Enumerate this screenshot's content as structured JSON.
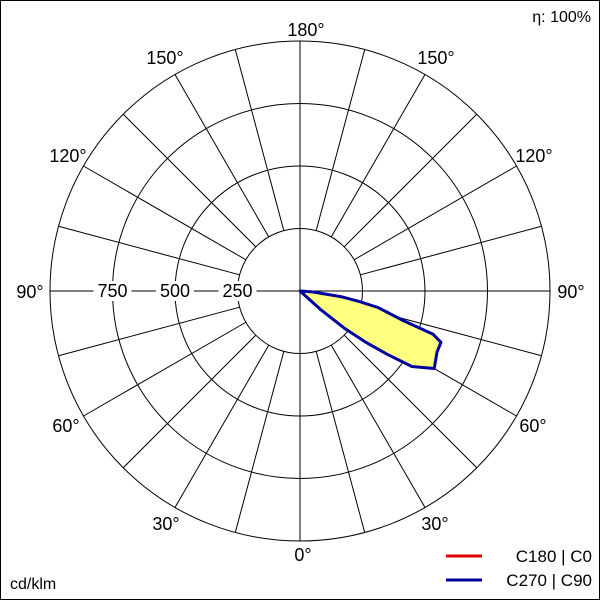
{
  "efficiency": "η: 100%",
  "unit": "cd/klm",
  "chart_data": {
    "type": "polar",
    "angle_labels": {
      "bottom": "0°",
      "top": "180°",
      "left_30": "30°",
      "right_30": "30°",
      "left_60": "60°",
      "right_60": "60°",
      "left_90": "90°",
      "right_90": "90°",
      "left_120": "120°",
      "right_120": "120°",
      "left_150": "150°",
      "right_150": "150°"
    },
    "radial_ticks": [
      250,
      500,
      750
    ],
    "radial_tick_labels": [
      "250",
      "500",
      "750"
    ],
    "r_max": 1000,
    "grid": true,
    "legend_position": "bottom-right",
    "series": [
      {
        "name": "C180 | C0",
        "color": "#e00000",
        "fill": null,
        "points": [
          {
            "angle": 0,
            "value": 0
          },
          {
            "angle": 90,
            "value": 4
          }
        ]
      },
      {
        "name": "C270 | C90",
        "color": "#0000a0",
        "fill": "#ffff80",
        "points": [
          {
            "angle": 90,
            "value": 0
          },
          {
            "angle": 86,
            "value": 50
          },
          {
            "angle": 82,
            "value": 170
          },
          {
            "angle": 80,
            "value": 240
          },
          {
            "angle": 78,
            "value": 320
          },
          {
            "angle": 74,
            "value": 430
          },
          {
            "angle": 72,
            "value": 560
          },
          {
            "angle": 70,
            "value": 600
          },
          {
            "angle": 66,
            "value": 600
          },
          {
            "angle": 60,
            "value": 620
          },
          {
            "angle": 56,
            "value": 540
          },
          {
            "angle": 54,
            "value": 430
          },
          {
            "angle": 52,
            "value": 330
          },
          {
            "angle": 50,
            "value": 230
          },
          {
            "angle": 48,
            "value": 110
          },
          {
            "angle": 46,
            "value": 0
          }
        ]
      }
    ]
  }
}
